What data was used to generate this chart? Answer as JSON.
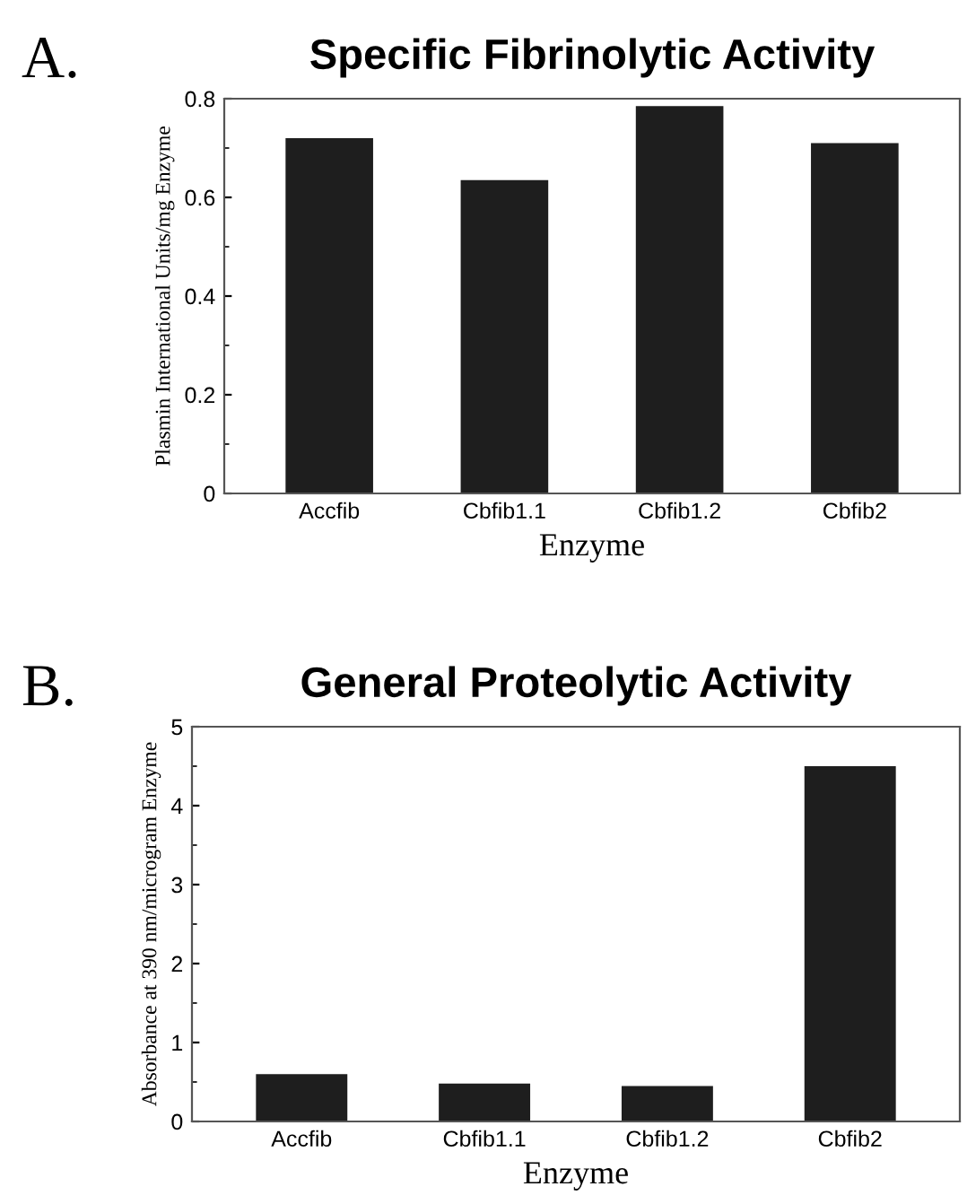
{
  "chart_data": [
    {
      "type": "bar",
      "title": "Specific Fibrinolytic Activity",
      "annotations": [
        "A."
      ],
      "xlabel": "Enzyme",
      "ylabel": "Plasmin International Units/mg Enzyme",
      "categories": [
        "Accfib",
        "Cbfib1.1",
        "Cbfib1.2",
        "Cbfib2"
      ],
      "values": [
        0.72,
        0.635,
        0.785,
        0.71
      ],
      "color": "#1e1e1e",
      "ylim": [
        0,
        0.8
      ],
      "yticks": [
        0,
        0.2,
        0.4,
        0.6,
        0.8
      ],
      "grid": false,
      "legend": false
    },
    {
      "type": "bar",
      "title": "General Proteolytic Activity",
      "annotations": [
        "B."
      ],
      "xlabel": "Enzyme",
      "ylabel": "Absorbance at 390 nm/microgram Enzyme",
      "categories": [
        "Accfib",
        "Cbfib1.1",
        "Cbfib1.2",
        "Cbfib2"
      ],
      "values": [
        0.6,
        0.48,
        0.45,
        4.5
      ],
      "color": "#1e1e1e",
      "ylim": [
        0,
        5
      ],
      "yticks": [
        0,
        1,
        2,
        3,
        4,
        5
      ],
      "grid": false,
      "legend": false
    }
  ]
}
